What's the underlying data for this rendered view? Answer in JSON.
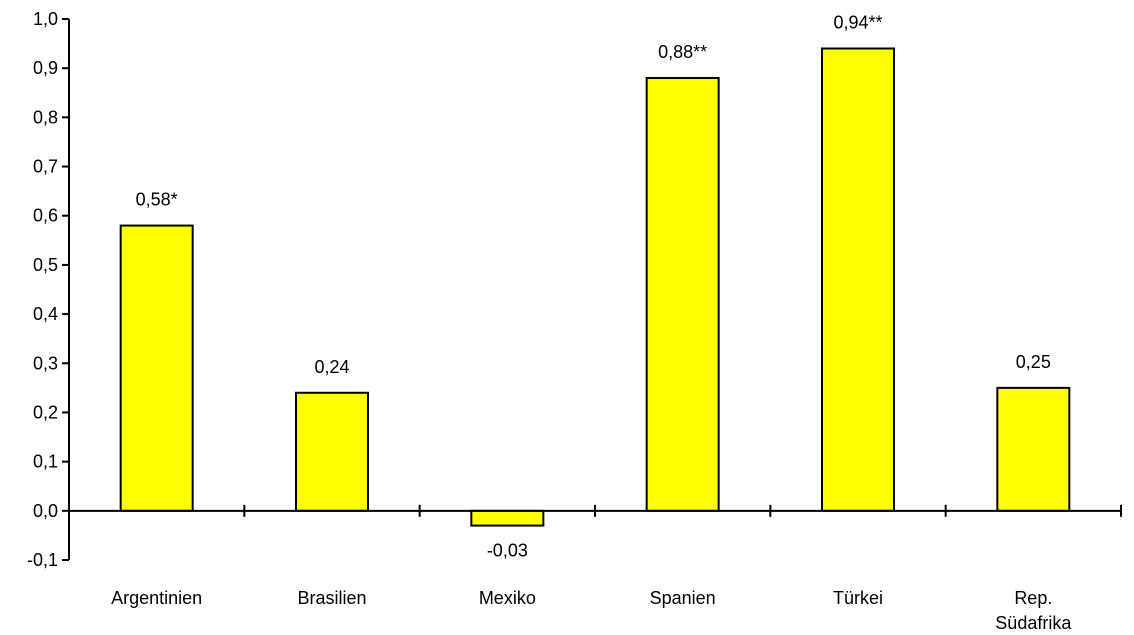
{
  "chart_data": {
    "type": "bar",
    "categories": [
      [
        "Argentinien"
      ],
      [
        "Brasilien"
      ],
      [
        "Mexiko"
      ],
      [
        "Spanien"
      ],
      [
        "Türkei"
      ],
      [
        "Rep.",
        "Südafrika"
      ]
    ],
    "values": [
      0.58,
      0.24,
      -0.03,
      0.88,
      0.94,
      0.25
    ],
    "data_labels": [
      "0,58*",
      "0,24",
      "-0,03",
      "0,88**",
      "0,94**",
      "0,25"
    ],
    "yticks": [
      -0.1,
      0.0,
      0.1,
      0.2,
      0.3,
      0.4,
      0.5,
      0.6,
      0.7,
      0.8,
      0.9,
      1.0
    ],
    "ytick_labels": [
      "-0,1",
      "0,0",
      "0,1",
      "0,2",
      "0,3",
      "0,4",
      "0,5",
      "0,6",
      "0,7",
      "0,8",
      "0,9",
      "1,0"
    ],
    "ylim": [
      -0.1,
      1.0
    ],
    "title": "",
    "xlabel": "",
    "ylabel": "",
    "grid": false,
    "bar_color": "#ffff00",
    "bar_edge_color": "#000000"
  }
}
